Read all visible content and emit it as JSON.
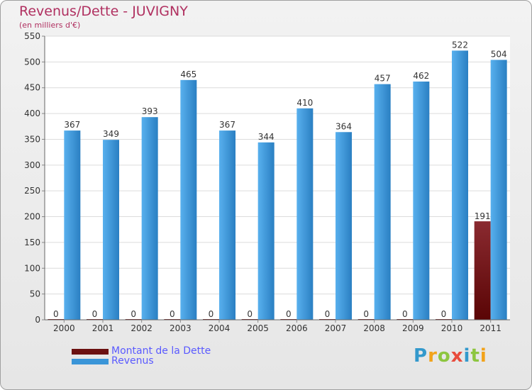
{
  "title": "Revenus/Dette - JUVIGNY",
  "subtitle": "(en milliers d'€)",
  "logo_letters": [
    "P",
    "r",
    "o",
    "x",
    "i",
    "t",
    "i"
  ],
  "logo_colors": [
    "#3399cc",
    "#f2a31b",
    "#8dc63f",
    "#e84c3d",
    "#3399cc",
    "#8dc63f",
    "#f2a31b"
  ],
  "colors": {
    "dette": "#6b1010",
    "revenus": "#3a95d8",
    "title": "#b03060",
    "legend_text": "#5a5aff",
    "grid": "#dcdcdc"
  },
  "chart_data": {
    "type": "bar",
    "categories": [
      "2000",
      "2001",
      "2002",
      "2003",
      "2004",
      "2005",
      "2006",
      "2007",
      "2008",
      "2009",
      "2010",
      "2011"
    ],
    "series": [
      {
        "name": "Montant de la Dette",
        "values": [
          0,
          0,
          0,
          0,
          0,
          0,
          0,
          0,
          0,
          0,
          0,
          191
        ]
      },
      {
        "name": "Revenus",
        "values": [
          367,
          349,
          393,
          465,
          367,
          344,
          410,
          364,
          457,
          462,
          522,
          504
        ]
      }
    ],
    "yticks": [
      "0",
      "50",
      "100",
      "150",
      "200",
      "250",
      "300",
      "350",
      "400",
      "450",
      "500",
      "550"
    ],
    "ylim": [
      0,
      550
    ],
    "grid": true,
    "legend_position": "bottom-left"
  }
}
